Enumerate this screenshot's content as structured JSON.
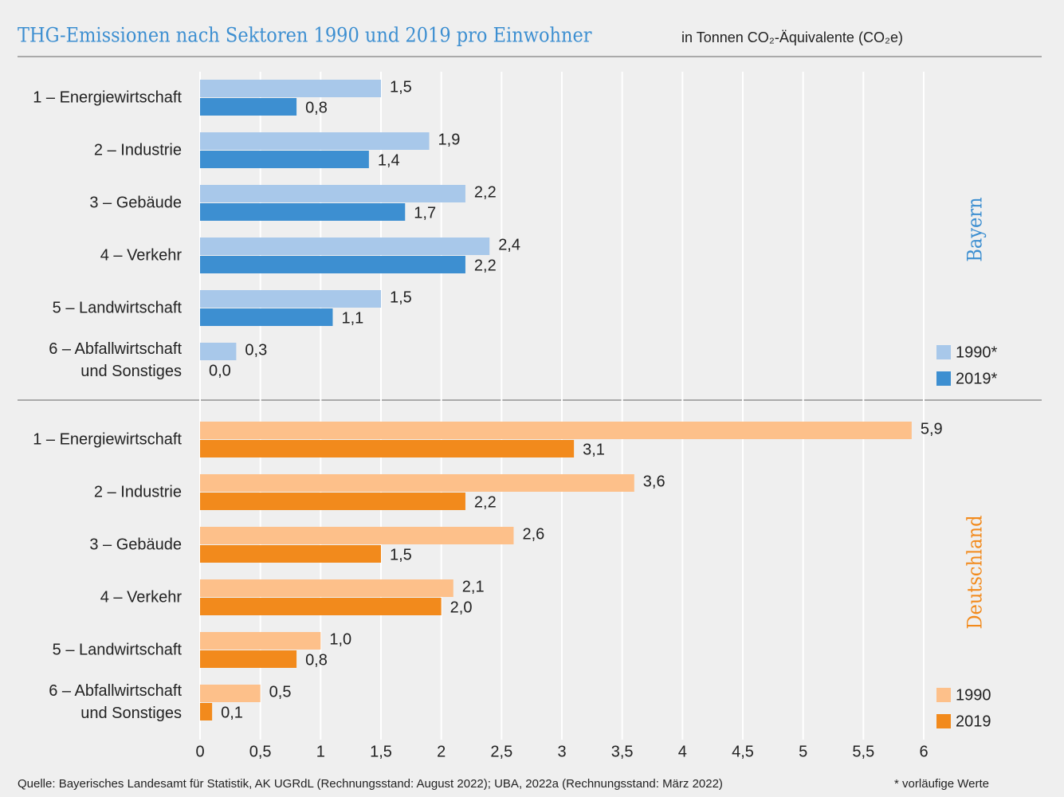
{
  "chart_data": {
    "type": "bar",
    "orientation": "horizontal",
    "title": "THG-Emissionen nach Sektoren 1990 und 2019 pro Einwohner",
    "subtitle": "in Tonnen CO₂-Äquivalente (CO₂e)",
    "xlim": [
      0,
      6
    ],
    "xticks": [
      0,
      {
        "value": 0.5,
        "label": "0,5"
      },
      1,
      {
        "value": 1.5,
        "label": "1,5"
      },
      2,
      {
        "value": 2.5,
        "label": "2,5"
      },
      3,
      {
        "value": 3.5,
        "label": "3,5"
      },
      4,
      {
        "value": 4.5,
        "label": "4,5"
      },
      5,
      {
        "value": 5.5,
        "label": "5,5"
      },
      6
    ],
    "grid": true,
    "source": "Quelle: Bayerisches Landesamt für Statistik, AK UGRdL (Rechnungsstand: August 2022); UBA, 2022a (Rechnungsstand: März 2022)",
    "note": "* vorläufige Werte",
    "panels": [
      {
        "label": "Bayern",
        "color": "#3d8fd1",
        "categories": [
          "1 – Energiewirtschaft",
          "2 – Industrie",
          "3 – Gebäude",
          "4 – Verkehr",
          "5 – Landwirtschaft",
          "6 – Abfallwirtschaft\nund Sonstiges"
        ],
        "series": [
          {
            "name": "1990*",
            "color": "#a8c8ea",
            "values": [
              1.5,
              1.9,
              2.2,
              2.4,
              1.5,
              0.3
            ],
            "value_labels": [
              "1,5",
              "1,9",
              "2,2",
              "2,4",
              "1,5",
              "0,3"
            ]
          },
          {
            "name": "2019*",
            "color": "#3d8fd1",
            "values": [
              0.8,
              1.4,
              1.7,
              2.2,
              1.1,
              0.0
            ],
            "value_labels": [
              "0,8",
              "1,4",
              "1,7",
              "2,2",
              "1,1",
              "0,0"
            ]
          }
        ]
      },
      {
        "label": "Deutschland",
        "color": "#f28a1c",
        "categories": [
          "1 – Energiewirtschaft",
          "2 – Industrie",
          "3 – Gebäude",
          "4 – Verkehr",
          "5 – Landwirtschaft",
          "6 – Abfallwirtschaft\nund Sonstiges"
        ],
        "series": [
          {
            "name": "1990",
            "color": "#fdc08a",
            "values": [
              5.9,
              3.6,
              2.6,
              2.1,
              1.0,
              0.5
            ],
            "value_labels": [
              "5,9",
              "3,6",
              "2,6",
              "2,1",
              "1,0",
              "0,5"
            ]
          },
          {
            "name": "2019",
            "color": "#f28a1c",
            "values": [
              3.1,
              2.2,
              1.5,
              2.0,
              0.8,
              0.1
            ],
            "value_labels": [
              "3,1",
              "2,2",
              "1,5",
              "2,0",
              "0,8",
              "0,1"
            ]
          }
        ]
      }
    ]
  }
}
